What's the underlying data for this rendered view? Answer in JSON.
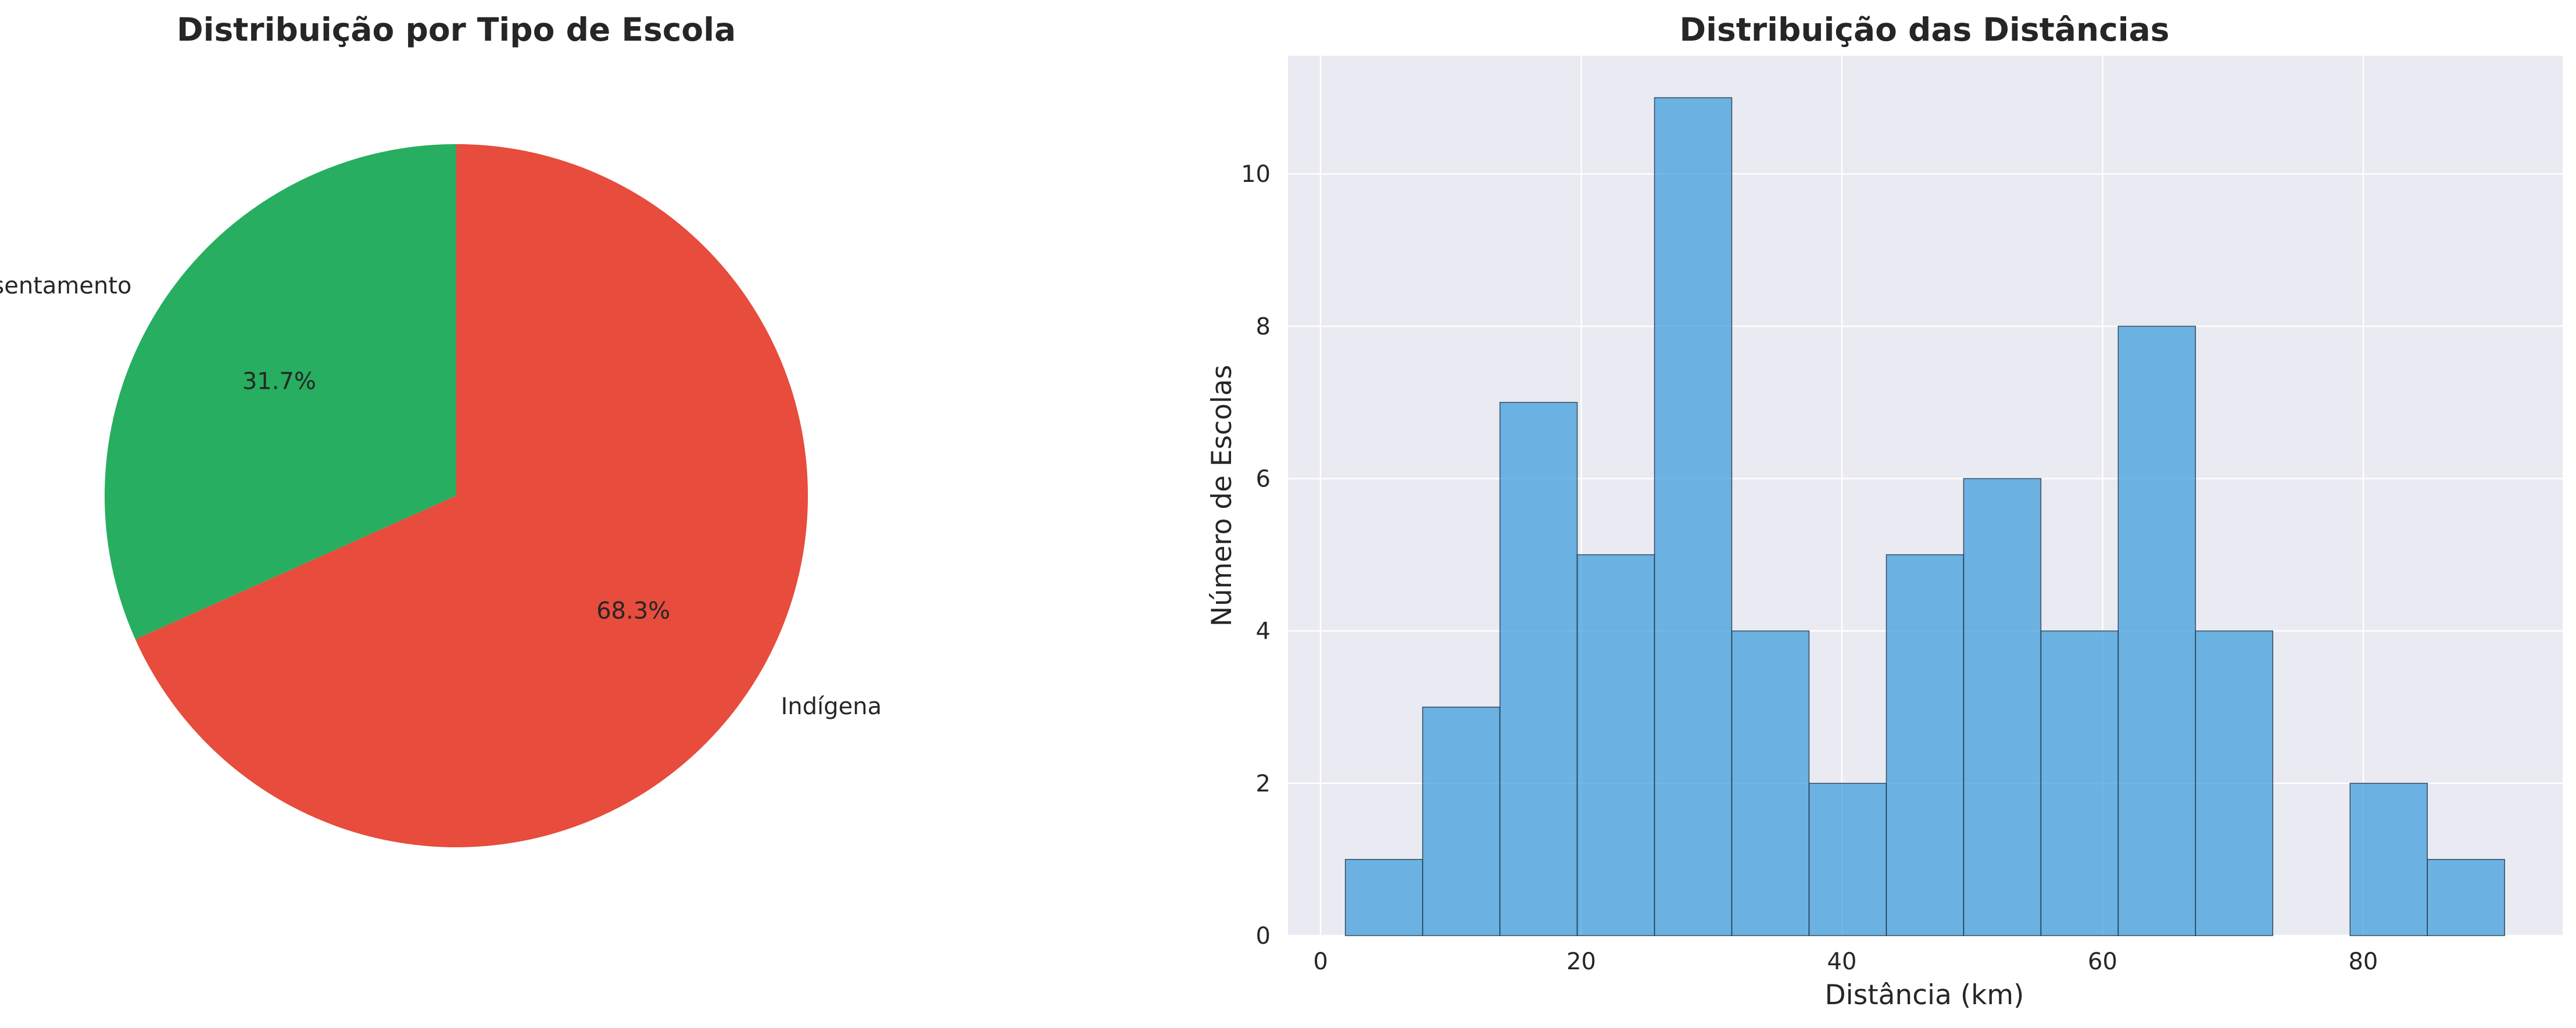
{
  "chart_data": [
    {
      "type": "pie",
      "title": "Distribuição por Tipo de Escola",
      "slices": [
        {
          "label": "Quilombola/Assentamento",
          "value": 31.7,
          "pct_label": "31.7%",
          "color": "#27ae60"
        },
        {
          "label": "Indígena",
          "value": 68.3,
          "pct_label": "68.3%",
          "color": "#e74c3c"
        }
      ],
      "start_angle": "top, counter-clockwise",
      "legend": "none"
    },
    {
      "type": "bar",
      "subtype": "histogram",
      "title": "Distribuição das Distâncias",
      "xlabel": "Distância (km)",
      "ylabel": "Número de Escolas",
      "bin_edges": [
        1.9,
        7.83,
        13.76,
        19.69,
        25.62,
        31.55,
        37.48,
        43.41,
        49.34,
        55.27,
        61.2,
        67.13,
        73.06,
        78.99,
        84.92,
        90.85
      ],
      "counts": [
        1,
        3,
        7,
        5,
        11,
        4,
        2,
        5,
        6,
        4,
        8,
        4,
        0,
        2,
        1
      ],
      "xlim": [
        -2.5,
        95.3
      ],
      "ylim": [
        0,
        11.55
      ],
      "xticks": [
        0,
        20,
        40,
        60,
        80
      ],
      "yticks": [
        0,
        2,
        4,
        6,
        8,
        10
      ],
      "bar_color": "#3498db",
      "background": "#eaeaf2",
      "grid": true
    }
  ]
}
